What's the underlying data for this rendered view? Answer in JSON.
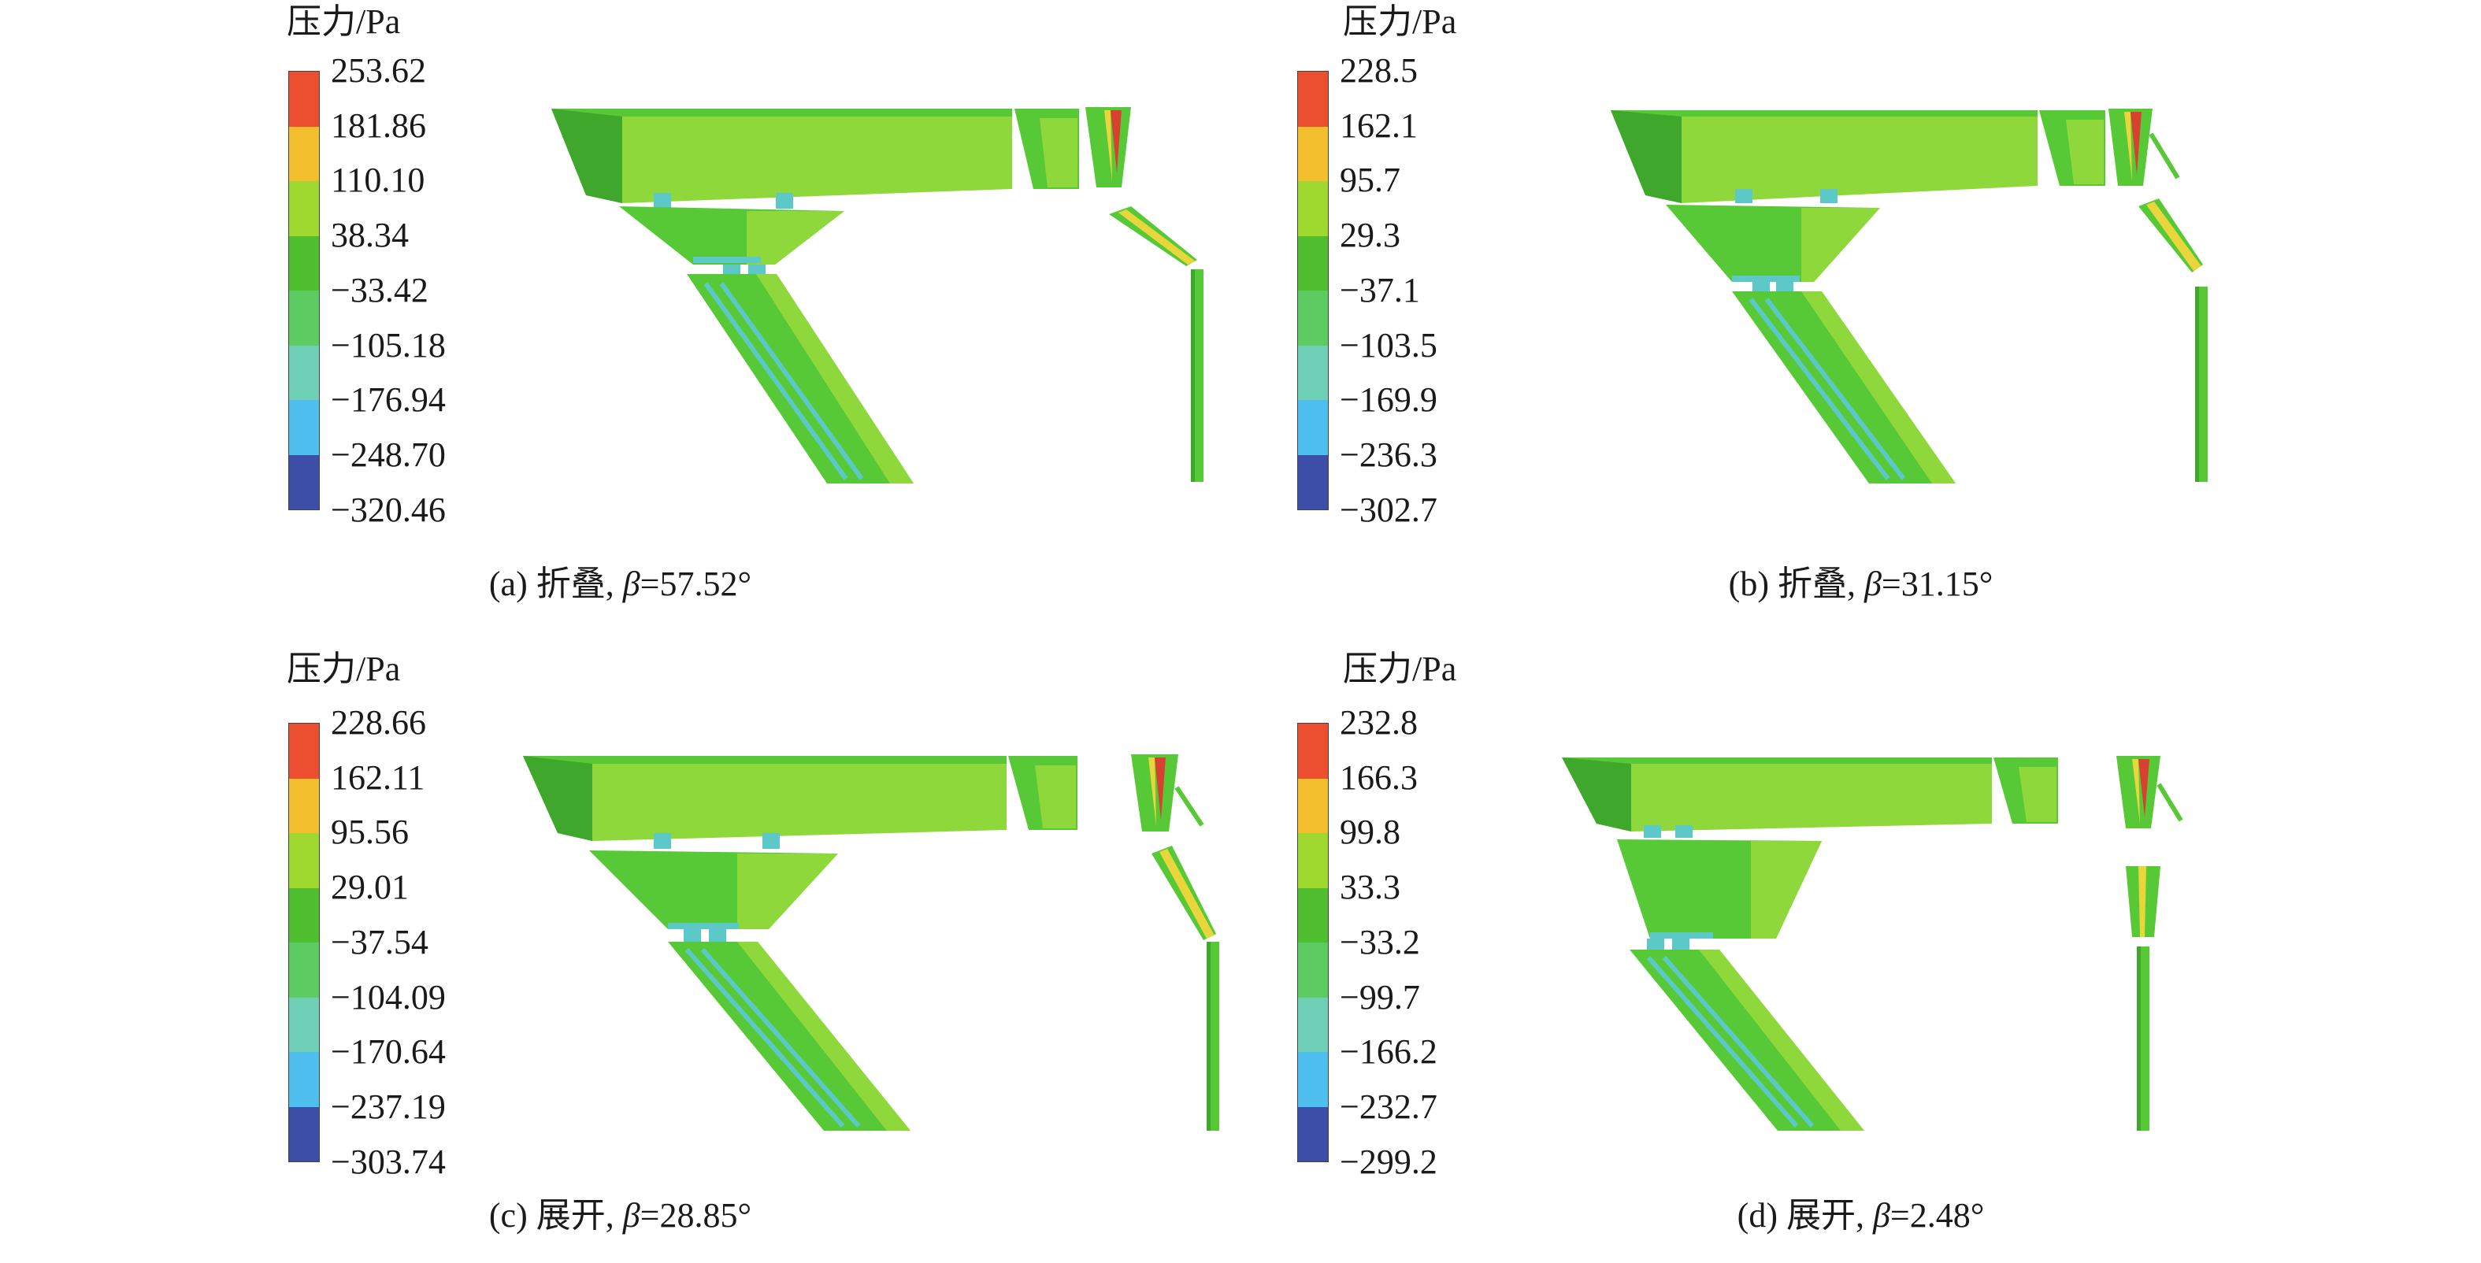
{
  "colormap": [
    "#3b4fa9",
    "#4fbfef",
    "#6fcfb7",
    "#5ccb62",
    "#4fbf2f",
    "#9fd82f",
    "#f4bf2f",
    "#ec4f2f"
  ],
  "geometry_colors": {
    "green": "#57c936",
    "light_green": "#8ed83c",
    "dark_green": "#3fa82c",
    "cyan": "#5cc8c8",
    "yellow": "#e8d63c",
    "red": "#d8402f"
  },
  "panels": [
    {
      "legend_title": "压力/Pa",
      "ticks": [
        "253.62",
        "181.86",
        "110.10",
        "38.34",
        "−33.42",
        "−105.18",
        "−176.94",
        "−248.70",
        "−320.46"
      ],
      "caption": {
        "prefix": "(a) 折叠, ",
        "beta": "β",
        "value": "=57.52°"
      }
    },
    {
      "legend_title": "压力/Pa",
      "ticks": [
        "228.5",
        "162.1",
        "95.7",
        "29.3",
        "−37.1",
        "−103.5",
        "−169.9",
        "−236.3",
        "−302.7"
      ],
      "caption": {
        "prefix": "(b) 折叠, ",
        "beta": "β",
        "value": "=31.15°"
      }
    },
    {
      "legend_title": "压力/Pa",
      "ticks": [
        "228.66",
        "162.11",
        "95.56",
        "29.01",
        "−37.54",
        "−104.09",
        "−170.64",
        "−237.19",
        "−303.74"
      ],
      "caption": {
        "prefix": "(c) 展开, ",
        "beta": "β",
        "value": "=28.85°"
      }
    },
    {
      "legend_title": "压力/Pa",
      "ticks": [
        "232.8",
        "166.3",
        "99.8",
        "33.3",
        "−33.2",
        "−99.7",
        "−166.2",
        "−232.7",
        "−299.2"
      ],
      "caption": {
        "prefix": "(d) 展开, ",
        "beta": "β",
        "value": "=2.48°"
      }
    }
  ]
}
